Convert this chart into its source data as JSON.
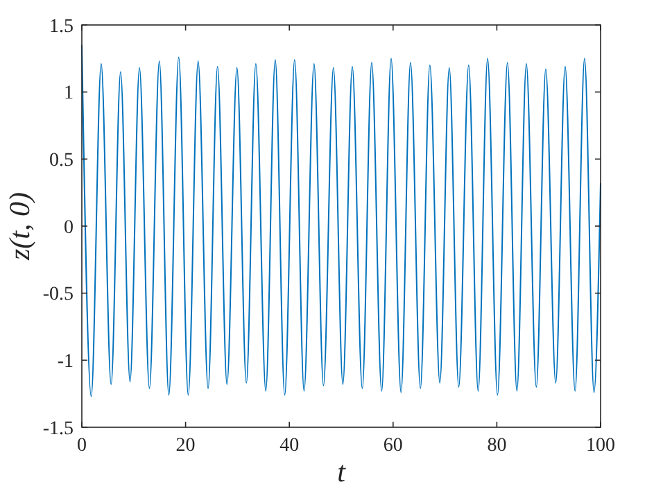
{
  "chart_data": {
    "type": "line",
    "xlabel": "t",
    "ylabel": "z(t, 0)",
    "xlim": [
      0,
      100
    ],
    "ylim": [
      -1.5,
      1.5
    ],
    "xticks": [
      0,
      20,
      40,
      60,
      80,
      100
    ],
    "yticks": [
      -1.5,
      -1,
      -0.5,
      0,
      0.5,
      1,
      1.5
    ],
    "grid": false,
    "marker": "none",
    "line_style": "solid",
    "series": [
      {
        "color": "#0072bd",
        "x": [
          0,
          1.81,
          3.73,
          5.64,
          7.47,
          9.29,
          11.11,
          13.03,
          14.94,
          16.77,
          18.68,
          20.51,
          22.42,
          24.34,
          26.16,
          27.98,
          29.9,
          31.72,
          33.54,
          35.46,
          37.28,
          39.11,
          41.02,
          42.84,
          44.76,
          46.58,
          48.5,
          50.32,
          52.14,
          54.06,
          55.88,
          57.8,
          59.62,
          61.53,
          63.36,
          65.27,
          67.09,
          69.01,
          70.83,
          72.66,
          74.57,
          76.4,
          78.22,
          80.13,
          82.05,
          83.87,
          85.69,
          87.61,
          89.43,
          91.35,
          93.17,
          95.08,
          96.91,
          98.73,
          100
        ],
        "values": [
          1.35,
          -1.27,
          1.21,
          -1.18,
          1.15,
          -1.16,
          1.18,
          -1.21,
          1.23,
          -1.26,
          1.26,
          -1.26,
          1.23,
          -1.21,
          1.19,
          -1.18,
          1.18,
          -1.17,
          1.21,
          -1.23,
          1.24,
          -1.26,
          1.24,
          -1.23,
          1.21,
          -1.19,
          1.18,
          -1.18,
          1.19,
          -1.21,
          1.22,
          -1.23,
          1.25,
          -1.24,
          1.22,
          -1.21,
          1.2,
          -1.17,
          1.18,
          -1.2,
          1.2,
          -1.23,
          1.25,
          -1.26,
          1.22,
          -1.23,
          1.21,
          -1.2,
          1.17,
          -1.17,
          1.19,
          -1.23,
          1.25,
          -1.24,
          0.32
        ]
      }
    ]
  }
}
